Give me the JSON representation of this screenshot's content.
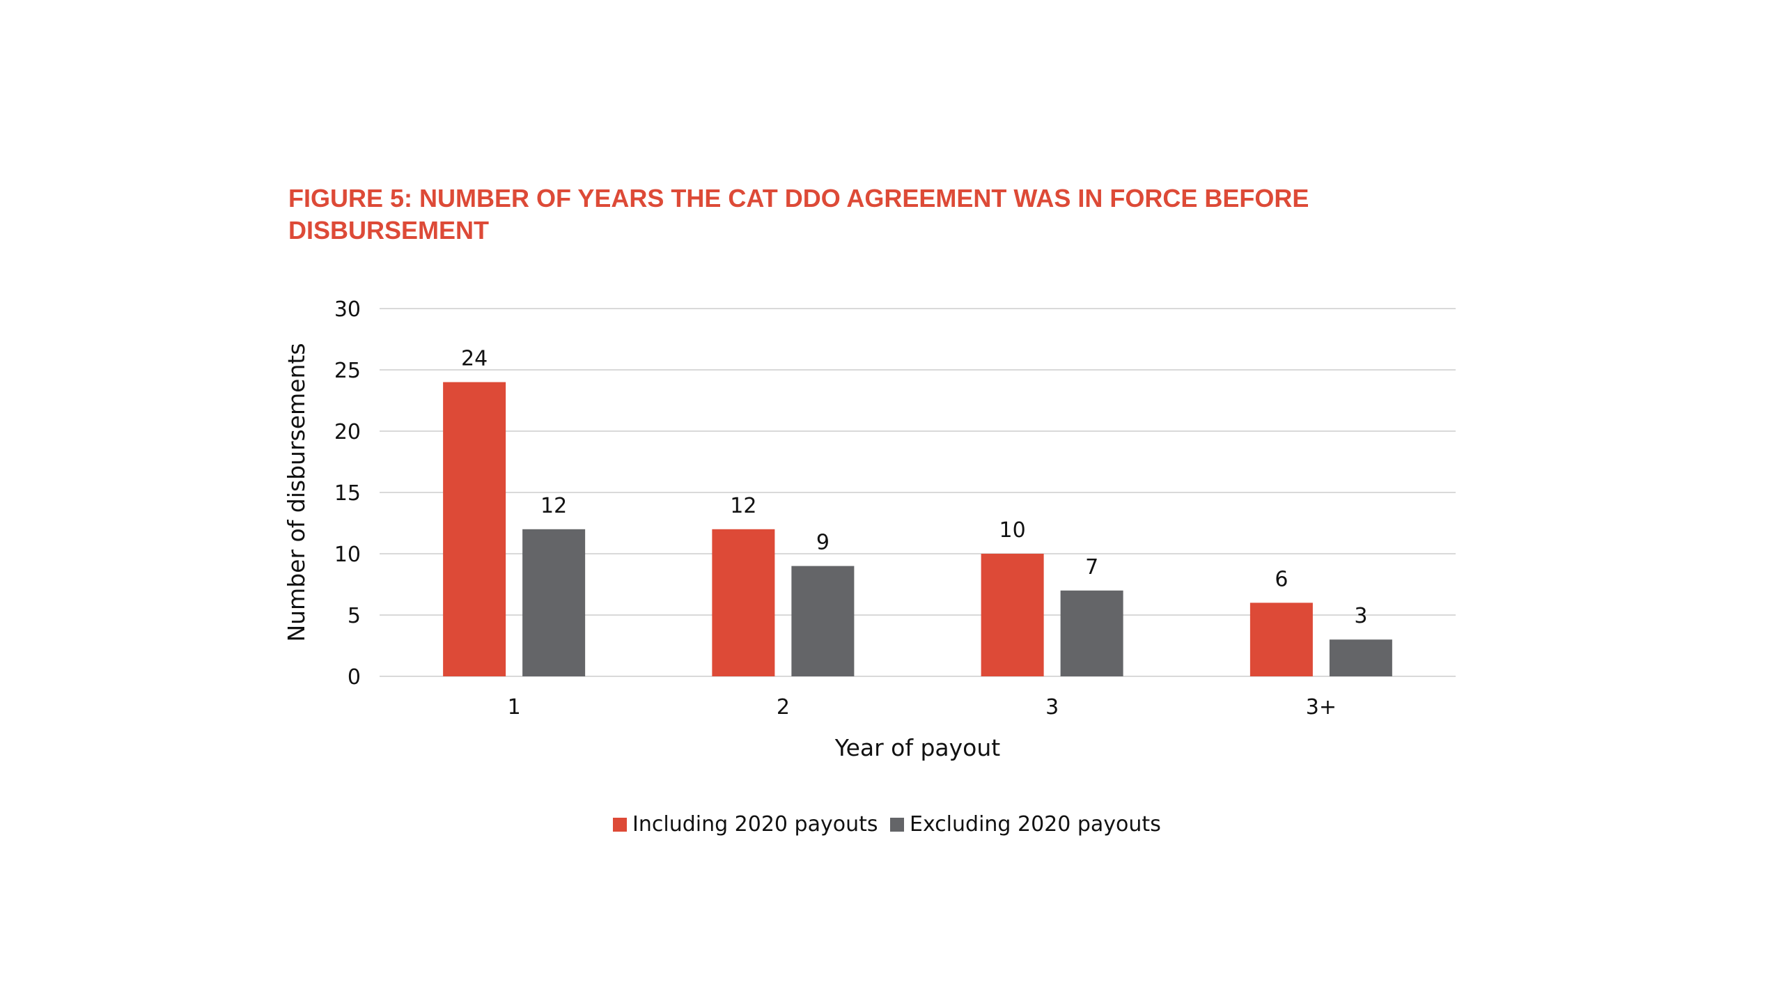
{
  "chart_data": {
    "type": "bar",
    "title": "FIGURE 5: NUMBER OF YEARS THE CAT DDO AGREEMENT WAS IN FORCE BEFORE DISBURSEMENT",
    "xlabel": "Year of payout",
    "ylabel": "Number of disbursements",
    "categories": [
      "1",
      "2",
      "3",
      "3+"
    ],
    "series": [
      {
        "name": "Including 2020 payouts",
        "values": [
          24,
          12,
          10,
          6
        ],
        "color": "#dd4a37"
      },
      {
        "name": "Excluding 2020 payouts",
        "values": [
          12,
          9,
          7,
          3
        ],
        "color": "#646568"
      }
    ],
    "ylim": [
      0,
      30
    ],
    "yticks": [
      0,
      5,
      10,
      15,
      20,
      25,
      30
    ],
    "grid": true,
    "legend": "bottom-center",
    "gridline_color": "#d9d9d9"
  }
}
